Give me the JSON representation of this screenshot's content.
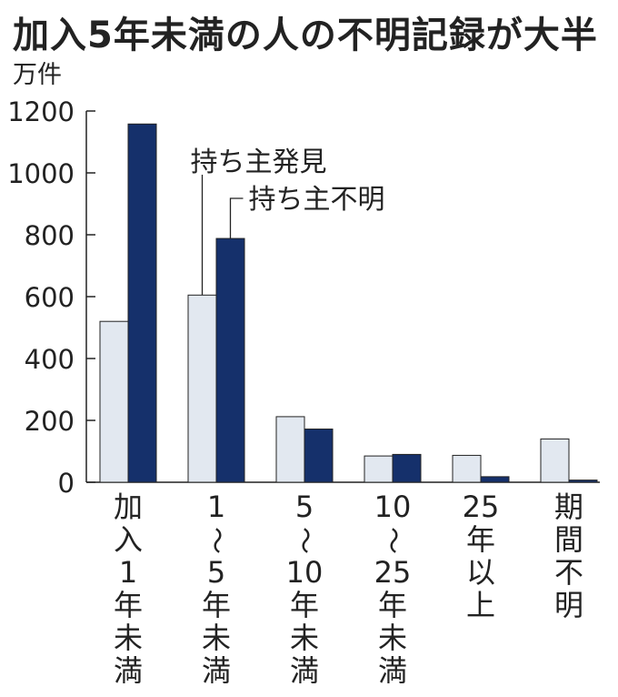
{
  "title": "加入5年未満の人の不明記録が大半",
  "unit": "万件",
  "chart_data": {
    "type": "bar",
    "categories": [
      "加入1年未満",
      "1～5年未満",
      "5～10年未満",
      "10～25年未満",
      "25年以上",
      "期間不明"
    ],
    "category_label_lines": [
      [
        "加",
        "入",
        "1",
        "年",
        "未",
        "満"
      ],
      [
        "1",
        "～",
        "5",
        "年",
        "未",
        "満"
      ],
      [
        "5",
        "～",
        "10",
        "年",
        "未",
        "満"
      ],
      [
        "10",
        "～",
        "25",
        "年",
        "未",
        "満"
      ],
      [
        "25",
        "年",
        "以",
        "上"
      ],
      [
        "期",
        "間",
        "不",
        "明"
      ]
    ],
    "series": [
      {
        "name": "持ち主発見",
        "values": [
          520,
          605,
          212,
          85,
          87,
          140
        ],
        "color": "#e2e8f0"
      },
      {
        "name": "持ち主不明",
        "values": [
          1158,
          788,
          172,
          90,
          18,
          7
        ],
        "color": "#15306b"
      }
    ],
    "ylim": [
      0,
      1200
    ],
    "yticks": [
      0,
      200,
      400,
      600,
      800,
      1000,
      1200
    ],
    "legend_placement": "annotations with leader lines on the second category group",
    "grid": false
  }
}
